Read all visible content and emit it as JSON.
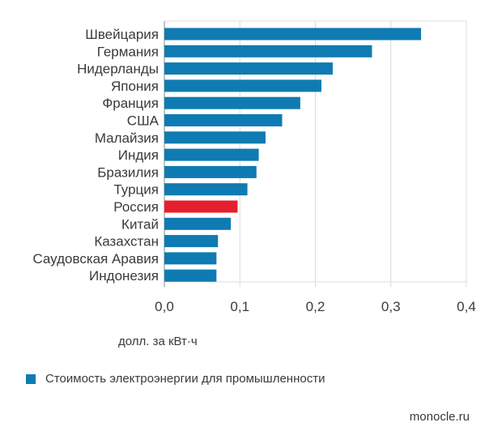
{
  "chart_data": {
    "type": "bar",
    "orientation": "horizontal",
    "categories": [
      "Швейцария",
      "Германия",
      "Нидерланды",
      "Япония",
      "Франция",
      "США",
      "Малайзия",
      "Индия",
      "Бразилия",
      "Турция",
      "Россия",
      "Китай",
      "Казахстан",
      "Саудовская Аравия",
      "Индонезия"
    ],
    "series": [
      {
        "name": "Стоимость электроэнергии для промышленности",
        "values": [
          0.34,
          0.275,
          0.223,
          0.208,
          0.18,
          0.156,
          0.134,
          0.125,
          0.122,
          0.11,
          0.097,
          0.088,
          0.071,
          0.069,
          0.069
        ]
      }
    ],
    "highlight": {
      "category": "Россия",
      "color": "#e5202e"
    },
    "bar_color": "#0f7bb2",
    "xlim": [
      0,
      0.4
    ],
    "x_ticks": [
      "0,0",
      "0,1",
      "0,2",
      "0,3",
      "0,4"
    ],
    "x_tick_values": [
      0,
      0.1,
      0.2,
      0.3,
      0.4
    ],
    "xlabel": "долл. за кВт·ч",
    "ylabel": "",
    "grid": true,
    "legend_position": "bottom-left"
  },
  "source": "monocle.ru"
}
